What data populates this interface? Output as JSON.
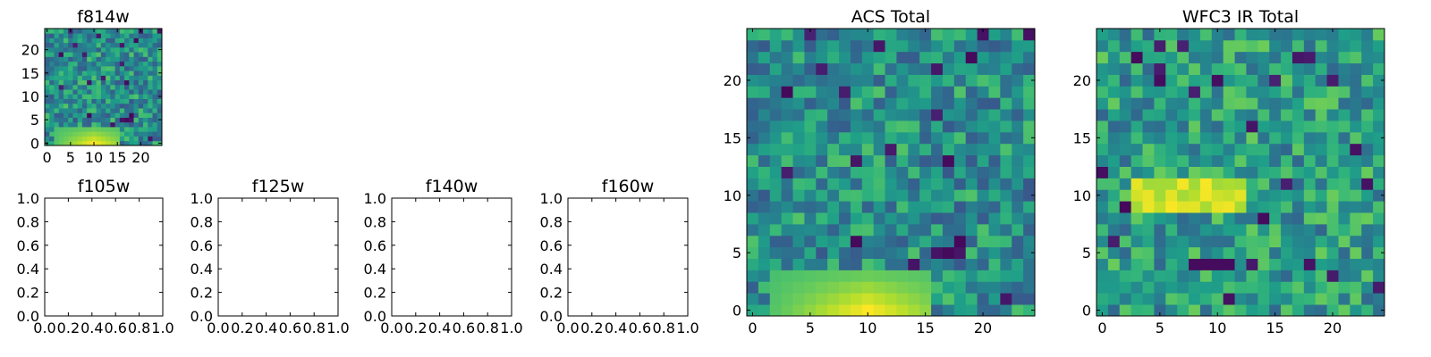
{
  "chart_data": [
    {
      "type": "heatmap",
      "title": "f814w",
      "xlabel": "",
      "ylabel": "",
      "grid_size": 25,
      "xlim": [
        -0.5,
        24.5
      ],
      "ylim": [
        -0.5,
        24.5
      ],
      "xticks": [
        0,
        5,
        10,
        15,
        20
      ],
      "yticks": [
        0,
        5,
        10,
        15,
        20
      ],
      "colormap": "viridis",
      "values_per_row": "25x25 intensity grid rendered by script (bright band near bottom rows 0-3, columns 2-15)"
    },
    {
      "type": "scatter",
      "title": "f105w",
      "xlim": [
        0.0,
        1.0
      ],
      "ylim": [
        0.0,
        1.0
      ],
      "xticks": [
        "0.0",
        "0.2",
        "0.4",
        "0.6",
        "0.8",
        "1.0"
      ],
      "yticks": [
        "0.0",
        "0.2",
        "0.4",
        "0.6",
        "0.8",
        "1.0"
      ],
      "series": []
    },
    {
      "type": "scatter",
      "title": "f125w",
      "xlim": [
        0.0,
        1.0
      ],
      "ylim": [
        0.0,
        1.0
      ],
      "xticks": [
        "0.0",
        "0.2",
        "0.4",
        "0.6",
        "0.8",
        "1.0"
      ],
      "yticks": [
        "0.0",
        "0.2",
        "0.4",
        "0.6",
        "0.8",
        "1.0"
      ],
      "series": []
    },
    {
      "type": "scatter",
      "title": "f140w",
      "xlim": [
        0.0,
        1.0
      ],
      "ylim": [
        0.0,
        1.0
      ],
      "xticks": [
        "0.0",
        "0.2",
        "0.4",
        "0.6",
        "0.8",
        "1.0"
      ],
      "yticks": [
        "0.0",
        "0.2",
        "0.4",
        "0.6",
        "0.8",
        "1.0"
      ],
      "series": []
    },
    {
      "type": "scatter",
      "title": "f160w",
      "xlim": [
        0.0,
        1.0
      ],
      "ylim": [
        0.0,
        1.0
      ],
      "xticks": [
        "0.0",
        "0.2",
        "0.4",
        "0.6",
        "0.8",
        "1.0"
      ],
      "yticks": [
        "0.0",
        "0.2",
        "0.4",
        "0.6",
        "0.8",
        "1.0"
      ],
      "series": []
    },
    {
      "type": "heatmap",
      "title": "ACS Total",
      "grid_size": 25,
      "xlim": [
        -0.5,
        24.5
      ],
      "ylim": [
        -0.5,
        24.5
      ],
      "xticks": [
        0,
        5,
        10,
        15,
        20
      ],
      "yticks": [
        0,
        5,
        10,
        15,
        20
      ],
      "colormap": "viridis"
    },
    {
      "type": "heatmap",
      "title": "WFC3 IR Total",
      "grid_size": 25,
      "xlim": [
        -0.5,
        24.5
      ],
      "ylim": [
        -0.5,
        24.5
      ],
      "xticks": [
        0,
        5,
        10,
        15,
        20
      ],
      "yticks": [
        0,
        5,
        10,
        15,
        20
      ],
      "colormap": "viridis"
    }
  ]
}
